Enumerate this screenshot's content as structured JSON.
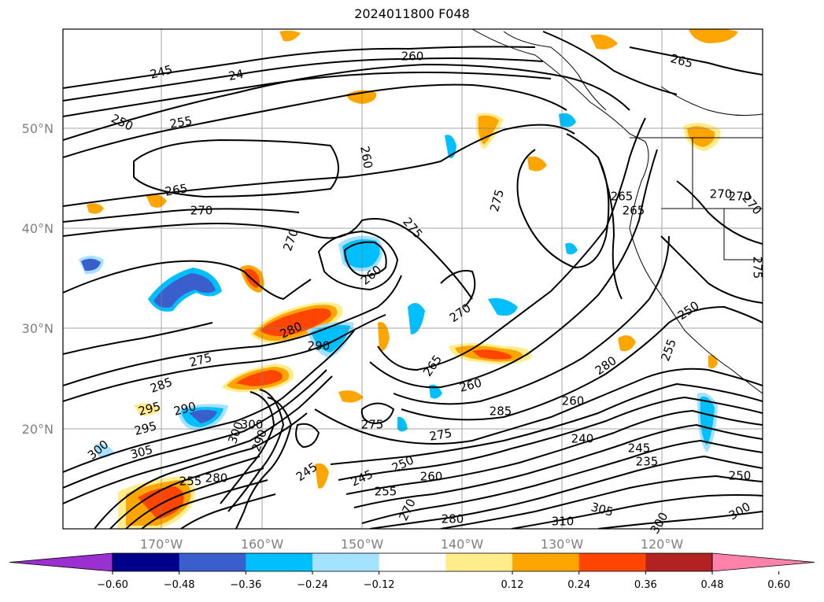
{
  "title": "2024011800 F048",
  "map": {
    "lat_labels": [
      "50°N",
      "40°N",
      "30°N",
      "20°N"
    ],
    "lon_labels": [
      "170°W",
      "160°W",
      "150°W",
      "140°W",
      "130°W",
      "120°W"
    ],
    "contour_labels": [
      "245",
      "24",
      "250",
      "255",
      "260",
      "260",
      "265",
      "265",
      "270",
      "270",
      "275",
      "275",
      "270",
      "260",
      "270",
      "280",
      "290",
      "275",
      "285",
      "295",
      "290",
      "295",
      "300",
      "305",
      "300",
      "290",
      "300",
      "265",
      "260",
      "285",
      "275",
      "275",
      "250",
      "245",
      "245",
      "255",
      "280",
      "280",
      "260",
      "250",
      "255",
      "240",
      "245",
      "235",
      "260",
      "270",
      "280",
      "310",
      "305",
      "300",
      "300",
      "270",
      "265",
      "265",
      "250",
      "255",
      "270",
      "275"
    ],
    "grid": true
  },
  "colorbar": {
    "ticks": [
      "−0.60",
      "−0.48",
      "−0.36",
      "−0.24",
      "−0.12",
      "0.12",
      "0.24",
      "0.36",
      "0.48",
      "0.60"
    ],
    "colors": [
      "#9b30d0",
      "#00008b",
      "#3a5fcd",
      "#00bfff",
      "#a4e2ff",
      "#ffffff",
      "#ffec8b",
      "#ffa500",
      "#ff4500",
      "#b22222",
      "#ff82ab"
    ],
    "extend": "both"
  }
}
